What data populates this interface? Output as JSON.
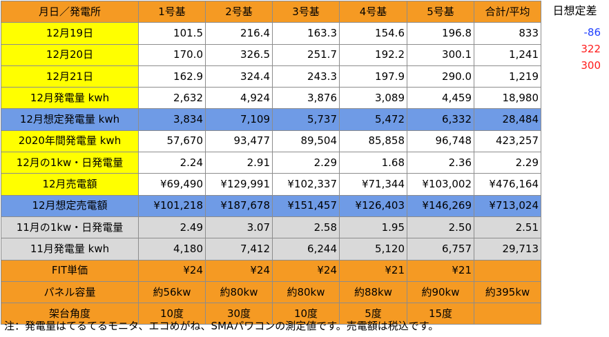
{
  "table": {
    "header": [
      "月日／発電所",
      "1号基",
      "2号基",
      "3号基",
      "4号基",
      "5号基",
      "合計/平均"
    ],
    "rows": [
      {
        "label": "12月19日",
        "cells": [
          "101.5",
          "216.4",
          "163.3",
          "154.6",
          "196.8",
          "833"
        ]
      },
      {
        "label": "12月20日",
        "cells": [
          "170.0",
          "326.5",
          "251.7",
          "192.2",
          "300.1",
          "1,241"
        ]
      },
      {
        "label": "12月21日",
        "cells": [
          "162.9",
          "324.4",
          "243.3",
          "197.9",
          "290.0",
          "1,219"
        ]
      },
      {
        "label": "12月発電量 kwh",
        "cells": [
          "2,632",
          "4,924",
          "3,876",
          "3,089",
          "4,459",
          "18,980"
        ]
      },
      {
        "label": "12月想定発電量 kwh",
        "cells": [
          "3,834",
          "7,109",
          "5,737",
          "5,472",
          "6,332",
          "28,484"
        ]
      },
      {
        "label": "2020年間発電量 kwh",
        "cells": [
          "57,670",
          "93,477",
          "89,504",
          "85,858",
          "96,748",
          "423,257"
        ]
      },
      {
        "label": "12月の1kw・日発電量",
        "cells": [
          "2.24",
          "2.91",
          "2.29",
          "1.68",
          "2.36",
          "2.29"
        ]
      },
      {
        "label": "12月売電額",
        "cells": [
          "¥69,490",
          "¥129,991",
          "¥102,337",
          "¥71,344",
          "¥103,002",
          "¥476,164"
        ]
      },
      {
        "label": "12月想定売電額",
        "cells": [
          "¥101,218",
          "¥187,678",
          "¥151,457",
          "¥126,403",
          "¥146,269",
          "¥713,024"
        ]
      },
      {
        "label": "11月の1kw・日発電量",
        "cells": [
          "2.49",
          "3.07",
          "2.58",
          "1.95",
          "2.50",
          "2.51"
        ]
      },
      {
        "label": "11月発電量 kwh",
        "cells": [
          "4,180",
          "7,412",
          "6,244",
          "5,120",
          "6,757",
          "29,713"
        ]
      },
      {
        "label": "FIT単価",
        "cells": [
          "¥24",
          "¥24",
          "¥24",
          "¥21",
          "¥21",
          ""
        ]
      },
      {
        "label": "パネル容量",
        "cells": [
          "約56kw",
          "約80kw",
          "約80kw",
          "約88kw",
          "約90kw",
          "約395kw"
        ]
      },
      {
        "label": "架台角度",
        "cells": [
          "10度",
          "30度",
          "10度",
          "5度",
          "15度",
          ""
        ]
      }
    ]
  },
  "side": {
    "header": "日想定差",
    "values": [
      "-86",
      "322",
      "300"
    ],
    "colors": [
      "#1f3fff",
      "#ff1a1a",
      "#ff1a1a"
    ]
  },
  "note": "注：発電量はてるてるモニタ、エコめがね、SMAパワコンの測定値です。売電額は税込です。"
}
